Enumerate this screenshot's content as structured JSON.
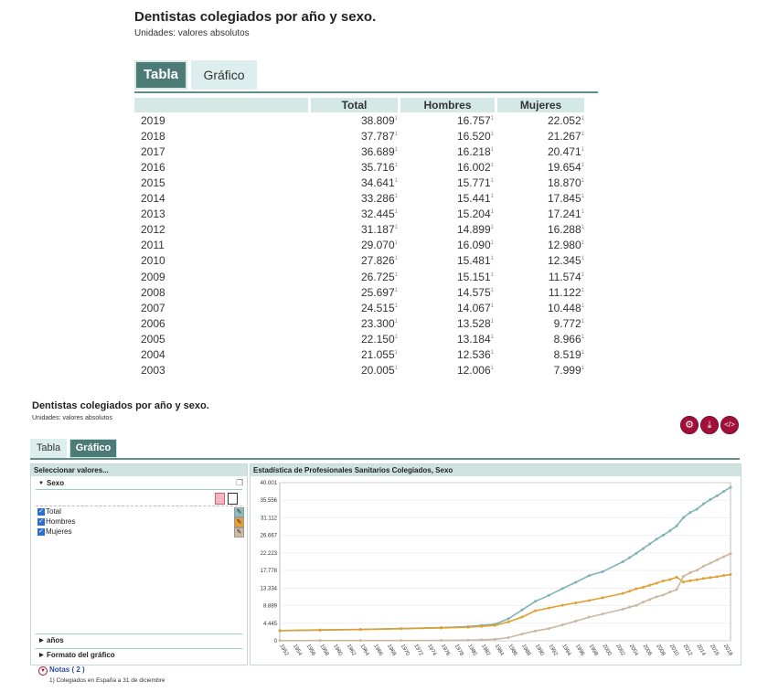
{
  "top": {
    "title": "Dentistas colegiados por año y sexo.",
    "units": "Unidades: valores absolutos",
    "tabs": [
      "Tabla",
      "Gráfico"
    ],
    "headers": [
      "Total",
      "Hombres",
      "Mujeres"
    ],
    "rows": [
      {
        "year": "2019",
        "total": "38.809",
        "hombres": "16.757",
        "mujeres": "22.052"
      },
      {
        "year": "2018",
        "total": "37.787",
        "hombres": "16.520",
        "mujeres": "21.267"
      },
      {
        "year": "2017",
        "total": "36.689",
        "hombres": "16.218",
        "mujeres": "20.471"
      },
      {
        "year": "2016",
        "total": "35.716",
        "hombres": "16.002",
        "mujeres": "19.654"
      },
      {
        "year": "2015",
        "total": "34.641",
        "hombres": "15.771",
        "mujeres": "18.870"
      },
      {
        "year": "2014",
        "total": "33.286",
        "hombres": "15.441",
        "mujeres": "17.845"
      },
      {
        "year": "2013",
        "total": "32.445",
        "hombres": "15.204",
        "mujeres": "17.241"
      },
      {
        "year": "2012",
        "total": "31.187",
        "hombres": "14.899",
        "mujeres": "16.288"
      },
      {
        "year": "2011",
        "total": "29.070",
        "hombres": "16.090",
        "mujeres": "12.980"
      },
      {
        "year": "2010",
        "total": "27.826",
        "hombres": "15.481",
        "mujeres": "12.345"
      },
      {
        "year": "2009",
        "total": "26.725",
        "hombres": "15.151",
        "mujeres": "11.574"
      },
      {
        "year": "2008",
        "total": "25.697",
        "hombres": "14.575",
        "mujeres": "11.122"
      },
      {
        "year": "2007",
        "total": "24.515",
        "hombres": "14.067",
        "mujeres": "10.448"
      },
      {
        "year": "2006",
        "total": "23.300",
        "hombres": "13.528",
        "mujeres": "9.772"
      },
      {
        "year": "2005",
        "total": "22.150",
        "hombres": "13.184",
        "mujeres": "8.966"
      },
      {
        "year": "2004",
        "total": "21.055",
        "hombres": "12.536",
        "mujeres": "8.519"
      },
      {
        "year": "2003",
        "total": "20.005",
        "hombres": "12.006",
        "mujeres": "7.999"
      }
    ],
    "note_mark": "1"
  },
  "bottom": {
    "title": "Dentistas colegiados por año y sexo.",
    "units": "Unidades: valores absolutos",
    "tabs": [
      "Tabla",
      "Gráfico"
    ],
    "icons": [
      "settings-icon",
      "download-icon",
      "embed-icon"
    ],
    "select_header": "Seleccionar valores...",
    "sexo_label": "Sexo",
    "checkboxes": [
      "Total",
      "Hombres",
      "Mujeres"
    ],
    "sections": [
      "años",
      "Formato del gráfico"
    ],
    "notes_label": "Notas ( 2 )",
    "note1": "1) Colegiados en España a 31 de diciembre"
  },
  "chart_data": {
    "type": "line",
    "title": "Estadística de Profesionales Sanitarios Colegiados, Sexo",
    "y_ticks": [
      "40.001",
      "35.556",
      "31.112",
      "26.667",
      "22.223",
      "17.778",
      "13.334",
      "8.889",
      "4.445",
      "0"
    ],
    "ylim": [
      0,
      40001
    ],
    "x_ticks": [
      "1952",
      "1954",
      "1956",
      "1958",
      "1960",
      "1962",
      "1964",
      "1966",
      "1968",
      "1970",
      "1972",
      "1974",
      "1976",
      "1978",
      "1980",
      "1982",
      "1984",
      "1986",
      "1988",
      "1990",
      "1992",
      "1994",
      "1996",
      "1998",
      "2000",
      "2002",
      "2004",
      "2006",
      "2008",
      "2010",
      "2012",
      "2014",
      "2016",
      "2018"
    ],
    "x_years": [
      1952,
      2019
    ],
    "series": [
      {
        "name": "Total",
        "color": "#7fb3b6",
        "points": [
          [
            1952,
            2600
          ],
          [
            1958,
            2750
          ],
          [
            1964,
            2900
          ],
          [
            1970,
            3100
          ],
          [
            1976,
            3350
          ],
          [
            1980,
            3600
          ],
          [
            1982,
            3900
          ],
          [
            1984,
            4200
          ],
          [
            1986,
            5600
          ],
          [
            1988,
            7800
          ],
          [
            1990,
            10000
          ],
          [
            1992,
            11500
          ],
          [
            1994,
            13200
          ],
          [
            1996,
            14800
          ],
          [
            1998,
            16500
          ],
          [
            2000,
            17500
          ],
          [
            2003,
            20005
          ],
          [
            2004,
            21055
          ],
          [
            2005,
            22150
          ],
          [
            2006,
            23300
          ],
          [
            2007,
            24515
          ],
          [
            2008,
            25697
          ],
          [
            2009,
            26725
          ],
          [
            2010,
            27826
          ],
          [
            2011,
            29070
          ],
          [
            2012,
            31187
          ],
          [
            2013,
            32445
          ],
          [
            2014,
            33286
          ],
          [
            2015,
            34641
          ],
          [
            2016,
            35716
          ],
          [
            2017,
            36689
          ],
          [
            2018,
            37787
          ],
          [
            2019,
            38809
          ]
        ]
      },
      {
        "name": "Hombres",
        "color": "#e0a030",
        "points": [
          [
            1952,
            2550
          ],
          [
            1958,
            2700
          ],
          [
            1964,
            2850
          ],
          [
            1970,
            3050
          ],
          [
            1976,
            3250
          ],
          [
            1980,
            3450
          ],
          [
            1982,
            3650
          ],
          [
            1984,
            3900
          ],
          [
            1986,
            4800
          ],
          [
            1988,
            6000
          ],
          [
            1990,
            7600
          ],
          [
            1992,
            8300
          ],
          [
            1994,
            9000
          ],
          [
            1996,
            9600
          ],
          [
            1998,
            10200
          ],
          [
            2000,
            10900
          ],
          [
            2003,
            12006
          ],
          [
            2004,
            12536
          ],
          [
            2005,
            13184
          ],
          [
            2006,
            13528
          ],
          [
            2007,
            14067
          ],
          [
            2008,
            14575
          ],
          [
            2009,
            15151
          ],
          [
            2010,
            15481
          ],
          [
            2011,
            16090
          ],
          [
            2012,
            14899
          ],
          [
            2013,
            15204
          ],
          [
            2014,
            15441
          ],
          [
            2015,
            15771
          ],
          [
            2016,
            16002
          ],
          [
            2017,
            16218
          ],
          [
            2018,
            16520
          ],
          [
            2019,
            16757
          ]
        ]
      },
      {
        "name": "Mujeres",
        "color": "#c9b8a0",
        "points": [
          [
            1952,
            50
          ],
          [
            1958,
            60
          ],
          [
            1964,
            70
          ],
          [
            1970,
            80
          ],
          [
            1976,
            110
          ],
          [
            1980,
            160
          ],
          [
            1982,
            250
          ],
          [
            1984,
            400
          ],
          [
            1986,
            800
          ],
          [
            1988,
            1700
          ],
          [
            1990,
            2500
          ],
          [
            1992,
            3100
          ],
          [
            1994,
            4000
          ],
          [
            1996,
            5000
          ],
          [
            1998,
            6000
          ],
          [
            2000,
            6800
          ],
          [
            2003,
            7999
          ],
          [
            2004,
            8519
          ],
          [
            2005,
            8966
          ],
          [
            2006,
            9772
          ],
          [
            2007,
            10448
          ],
          [
            2008,
            11122
          ],
          [
            2009,
            11574
          ],
          [
            2010,
            12345
          ],
          [
            2011,
            12980
          ],
          [
            2012,
            16288
          ],
          [
            2013,
            17241
          ],
          [
            2014,
            17845
          ],
          [
            2015,
            18870
          ],
          [
            2016,
            19654
          ],
          [
            2017,
            20471
          ],
          [
            2018,
            21267
          ],
          [
            2019,
            22052
          ]
        ]
      }
    ]
  }
}
